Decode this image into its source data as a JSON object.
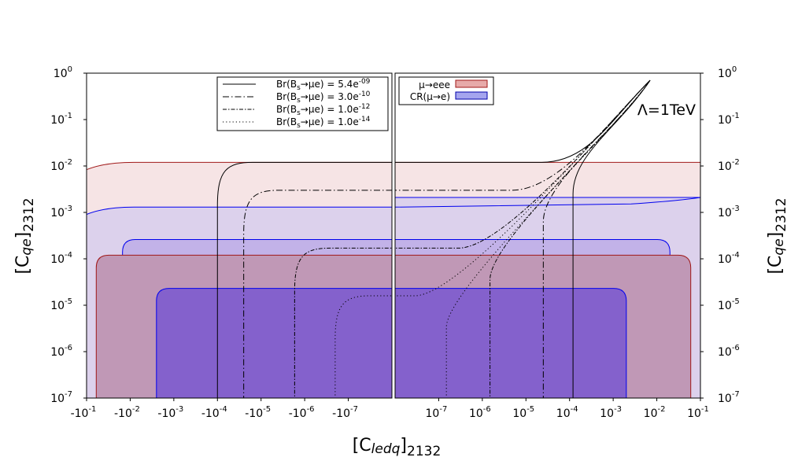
{
  "chart_data": {
    "type": "line",
    "annotation": "Λ=1TeV",
    "xlabel": {
      "base": "[C",
      "sub": "ledq",
      "tail": "]",
      "index": "2132"
    },
    "ylabel": {
      "base": "[C",
      "sub": "qe",
      "tail": "]",
      "index": "2312"
    },
    "x_ticks_left": [
      {
        "value": -0.1,
        "mant": "-10",
        "exp": "-1"
      },
      {
        "value": -0.01,
        "mant": "-10",
        "exp": "-2"
      },
      {
        "value": -0.001,
        "mant": "-10",
        "exp": "-3"
      },
      {
        "value": -0.0001,
        "mant": "-10",
        "exp": "-4"
      },
      {
        "value": -1e-05,
        "mant": "-10",
        "exp": "-5"
      },
      {
        "value": -1e-06,
        "mant": "-10",
        "exp": "-6"
      },
      {
        "value": -1e-07,
        "mant": "-10",
        "exp": "-7"
      }
    ],
    "x_ticks_right": [
      {
        "value": 1e-07,
        "mant": "10",
        "exp": "-7"
      },
      {
        "value": 1e-06,
        "mant": "10",
        "exp": "-6"
      },
      {
        "value": 1e-05,
        "mant": "10",
        "exp": "-5"
      },
      {
        "value": 0.0001,
        "mant": "10",
        "exp": "-4"
      },
      {
        "value": 0.001,
        "mant": "10",
        "exp": "-3"
      },
      {
        "value": 0.01,
        "mant": "10",
        "exp": "-2"
      },
      {
        "value": 0.1,
        "mant": "10",
        "exp": "-1"
      }
    ],
    "y_ticks": [
      {
        "value": 1,
        "mant": "10",
        "exp": "0"
      },
      {
        "value": 0.1,
        "mant": "10",
        "exp": "-1"
      },
      {
        "value": 0.01,
        "mant": "10",
        "exp": "-2"
      },
      {
        "value": 0.001,
        "mant": "10",
        "exp": "-3"
      },
      {
        "value": 0.0001,
        "mant": "10",
        "exp": "-4"
      },
      {
        "value": 1e-05,
        "mant": "10",
        "exp": "-5"
      },
      {
        "value": 1e-06,
        "mant": "10",
        "exp": "-6"
      },
      {
        "value": 1e-07,
        "mant": "10",
        "exp": "-7"
      }
    ],
    "xlim_left": [
      -0.1,
      -1e-08
    ],
    "xlim_right": [
      1e-08,
      0.1
    ],
    "ylim": [
      1e-07,
      1
    ],
    "xscale": "symlog",
    "yscale": "log",
    "grid": false,
    "legend_left": {
      "placement": "top-right",
      "entries": [
        {
          "pre": "Br(B",
          "sub": "s",
          "mid": "→μe) = 5.4e",
          "sup": "-09",
          "style": "solid"
        },
        {
          "pre": "Br(B",
          "sub": "s",
          "mid": "→μe) = 3.0e",
          "sup": "-10",
          "style": "dashdot"
        },
        {
          "pre": "Br(B",
          "sub": "s",
          "mid": "→μe) = 1.0e",
          "sup": "-12",
          "style": "dashdot-fine"
        },
        {
          "pre": "Br(B",
          "sub": "s",
          "mid": "→μe) = 1.0e",
          "sup": "-14",
          "style": "dotted"
        }
      ]
    },
    "legend_right": {
      "placement": "top-left",
      "entries": [
        {
          "label": "μ→eee",
          "fill": "#e7aaa9",
          "edge": "#a01818"
        },
        {
          "label": "CR(μ→e)",
          "fill": "#a5a5ee",
          "edge": "#0000aa"
        }
      ]
    },
    "regions": [
      {
        "name": "μ→eee",
        "level": "outer",
        "x_left": -0.1,
        "x_right": 0.1,
        "y_max": 0.012,
        "fill": "#f6e4e5",
        "edge": "#a01818"
      },
      {
        "name": "CR(μ→e)",
        "level": "outer",
        "x_left": -0.1,
        "x_right": 0.1,
        "y_max_left": 0.0013,
        "y_max_right": 0.0021,
        "fill": "#dcd1ec",
        "edge": "#0000ee"
      },
      {
        "name": "CR(μ→e)",
        "level": "middle",
        "x_left": -0.015,
        "x_right": 0.02,
        "y_max": 0.00026,
        "fill": "#c2b2e8",
        "edge": "#0000ee"
      },
      {
        "name": "μ→eee",
        "level": "inner",
        "x_left": -0.06,
        "x_right": 0.06,
        "y_max": 0.00012,
        "fill": "#c098b6",
        "edge": "#a01818"
      },
      {
        "name": "CR(μ→e)",
        "level": "inner",
        "x_left": -0.0025,
        "x_right": 0.002,
        "y_max": 2.3e-05,
        "fill": "#8461cc",
        "edge": "#0000ee"
      }
    ],
    "series": [
      {
        "style": "solid",
        "x_left": -0.0001,
        "x_right": 0.00012,
        "y_plateau": 0.012,
        "tip": [
          0.007,
          0.7
        ]
      },
      {
        "style": "dashdot",
        "x_left": -2.5e-05,
        "x_right": 2.5e-05,
        "y_plateau": 0.003,
        "tip": [
          0.007,
          0.7
        ]
      },
      {
        "style": "dashdot-fine",
        "x_left": -1.7e-06,
        "x_right": 1.5e-06,
        "y_plateau": 0.00017,
        "tip": [
          0.007,
          0.7
        ]
      },
      {
        "style": "dotted",
        "x_left": -2e-07,
        "x_right": 1.5e-07,
        "y_plateau": 1.6e-05,
        "tip": [
          0.007,
          0.7
        ]
      }
    ]
  }
}
